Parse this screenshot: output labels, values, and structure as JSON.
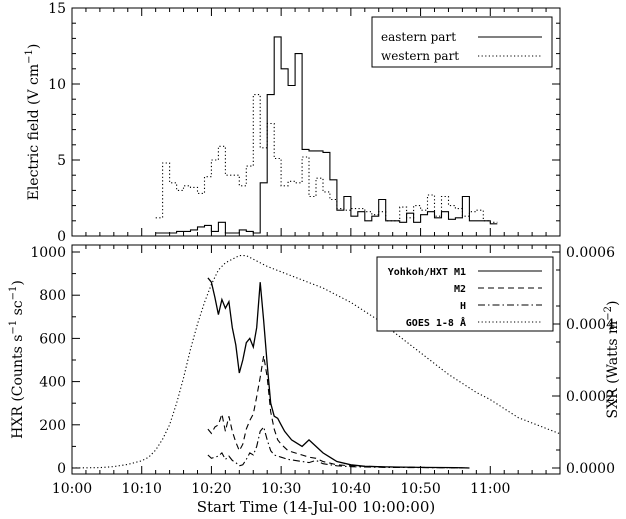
{
  "chart_data": [
    {
      "type": "line",
      "ylabel": "Electric field (V cm",
      "ylabel_sup": "−1",
      "ylabel_close": ")",
      "xlim": [
        0,
        70
      ],
      "ylim": [
        0,
        15
      ],
      "yticks": [
        "0",
        "5",
        "10",
        "15"
      ],
      "grid": false,
      "legend_position": "top-right",
      "series": [
        {
          "name": "eastern part",
          "style": "solid",
          "x": [
            12.5,
            13.5,
            14.5,
            15.5,
            16.5,
            17.5,
            18.5,
            19.5,
            20.5,
            21.5,
            22.5,
            23.5,
            24.5,
            25.5,
            26.5,
            27.5,
            28.5,
            29.5,
            30.5,
            31.5,
            32.5,
            33.5,
            34.5,
            35.5,
            36.5,
            37.5,
            38.5,
            39.5,
            40.5,
            41.5,
            42.5,
            43.5,
            44.5,
            45.5,
            46.5,
            47.5,
            48.5,
            49.5,
            50.5,
            51.5,
            52.5,
            53.5,
            54.5,
            55.5,
            56.5,
            57.5,
            58.5,
            59.5,
            60.5
          ],
          "y": [
            0.2,
            0.2,
            0.2,
            0.3,
            0.3,
            0.4,
            0.6,
            0.7,
            0.3,
            0.9,
            0.2,
            0.2,
            0.4,
            0.3,
            0.2,
            3.5,
            9.3,
            13.1,
            11.0,
            9.9,
            12.0,
            5.7,
            5.6,
            5.6,
            5.5,
            3.7,
            1.7,
            2.6,
            1.3,
            1.6,
            1.0,
            1.3,
            2.4,
            1.0,
            1.0,
            0.9,
            1.5,
            0.9,
            1.4,
            1.6,
            1.2,
            1.6,
            1.1,
            1.2,
            2.6,
            1.0,
            1.0,
            1.0,
            0.8
          ]
        },
        {
          "name": "western part",
          "style": "dotted",
          "x": [
            12.5,
            13.5,
            14.5,
            15.5,
            16.5,
            17.5,
            18.5,
            19.5,
            20.5,
            21.5,
            22.5,
            23.5,
            24.5,
            25.5,
            26.5,
            27.5,
            28.5,
            29.5,
            30.5,
            31.5,
            32.5,
            33.5,
            34.5,
            35.5,
            36.5,
            37.5,
            38.5,
            39.5,
            40.5,
            41.5,
            42.5,
            43.5,
            44.5,
            45.5,
            46.5,
            47.5,
            48.5,
            49.5,
            50.5,
            51.5,
            52.5,
            53.5,
            54.5,
            55.5,
            56.5,
            57.5,
            58.5,
            59.5,
            60.5
          ],
          "y": [
            1.2,
            4.8,
            3.5,
            3.0,
            3.3,
            3.2,
            2.8,
            3.9,
            5.0,
            5.9,
            4.0,
            4.0,
            3.3,
            4.6,
            9.3,
            5.8,
            7.4,
            5.1,
            3.3,
            3.6,
            3.5,
            5.2,
            2.6,
            3.8,
            2.9,
            2.4,
            1.8,
            1.7,
            1.8,
            1.8,
            1.6,
            1.4,
            1.6,
            1.0,
            1.0,
            1.9,
            1.2,
            2.0,
            1.7,
            2.7,
            1.3,
            2.6,
            2.0,
            1.8,
            1.3,
            1.6,
            1.7,
            1.0,
            0.9
          ]
        }
      ]
    },
    {
      "type": "line",
      "xlabel": "Start Time (14-Jul-00 10:00:00)",
      "xticks": [
        "10:00",
        "10:10",
        "10:20",
        "10:30",
        "10:40",
        "10:50",
        "11:00"
      ],
      "xlim": [
        0,
        70
      ],
      "ylabel_left": "HXR (Counts s",
      "ylabel_left_sup1": "−1",
      "ylabel_left_mid": " sc",
      "ylabel_left_sup2": "−1",
      "ylabel_left_close": ")",
      "ylim_left": [
        0,
        1000
      ],
      "yticks_left": [
        "0",
        "200",
        "400",
        "600",
        "800",
        "1000"
      ],
      "ylabel_right": "SXR (Watts m",
      "ylabel_right_sup": "−2",
      "ylabel_right_close": ")",
      "ylim_right": [
        0,
        0.0006
      ],
      "yticks_right": [
        "0.0000",
        "0.0002",
        "0.0004",
        "0.0006"
      ],
      "grid": false,
      "legend_position": "top-right",
      "series": [
        {
          "name": "Yohkoh/HXT M1",
          "style": "solid",
          "axis": "left",
          "x": [
            19.5,
            20,
            20.5,
            21,
            21.5,
            22,
            22.5,
            23,
            23.5,
            24,
            24.5,
            25,
            25.5,
            26,
            26.5,
            27,
            27.5,
            28,
            28.5,
            29,
            29.5,
            30,
            30.5,
            31,
            31.5,
            32,
            33,
            34,
            35,
            36,
            37,
            38,
            40,
            42,
            45,
            50,
            55,
            57
          ],
          "y": [
            880,
            860,
            790,
            710,
            780,
            740,
            770,
            650,
            570,
            440,
            500,
            580,
            600,
            560,
            650,
            860,
            680,
            480,
            300,
            240,
            230,
            200,
            170,
            150,
            130,
            120,
            100,
            130,
            100,
            70,
            50,
            30,
            15,
            8,
            5,
            3,
            2,
            0
          ]
        },
        {
          "name": "M2",
          "style": "dashed",
          "axis": "left",
          "x": [
            19.5,
            20,
            20.5,
            21,
            21.5,
            22,
            22.5,
            23,
            23.5,
            24,
            24.5,
            25,
            25.5,
            26,
            26.5,
            27,
            27.5,
            28,
            28.5,
            29,
            29.5,
            30,
            31,
            32,
            33,
            34,
            35,
            36,
            38,
            40,
            45,
            50,
            55,
            57
          ],
          "y": [
            180,
            160,
            190,
            200,
            250,
            170,
            240,
            170,
            120,
            80,
            110,
            180,
            220,
            250,
            330,
            420,
            520,
            420,
            260,
            180,
            130,
            110,
            80,
            70,
            60,
            50,
            45,
            30,
            15,
            10,
            5,
            3,
            1,
            0
          ]
        },
        {
          "name": "H",
          "style": "dash-dot",
          "axis": "left",
          "x": [
            19.5,
            20,
            20.5,
            21,
            21.5,
            22,
            22.5,
            23,
            23.5,
            24,
            24.5,
            25,
            25.5,
            26,
            26.5,
            27,
            27.5,
            28,
            28.5,
            29,
            30,
            31,
            32,
            33,
            34,
            35,
            36,
            38,
            40,
            45,
            50,
            55,
            57
          ],
          "y": [
            60,
            45,
            50,
            55,
            70,
            40,
            55,
            35,
            25,
            10,
            15,
            40,
            70,
            60,
            100,
            170,
            190,
            130,
            80,
            60,
            50,
            40,
            35,
            30,
            25,
            35,
            20,
            10,
            6,
            3,
            2,
            1,
            0
          ]
        },
        {
          "name": "GOES 1-8 Å",
          "style": "dotted",
          "axis": "right",
          "x": [
            0,
            4,
            6,
            8,
            10,
            11,
            12,
            13,
            14,
            15,
            16,
            17,
            18,
            19,
            20,
            21,
            22,
            23,
            24,
            25,
            26,
            27,
            28,
            30,
            32,
            34,
            36,
            38,
            40,
            42,
            44,
            46,
            48,
            50,
            52,
            54,
            56,
            58,
            60,
            62,
            64,
            66,
            68,
            70
          ],
          "y": [
            0,
            1e-06,
            4e-06,
            1e-05,
            2e-05,
            3e-05,
            5e-05,
            8e-05,
            0.00012,
            0.00018,
            0.00025,
            0.00033,
            0.0004,
            0.00046,
            0.00051,
            0.00055,
            0.00057,
            0.00058,
            0.00059,
            0.00059,
            0.00058,
            0.00057,
            0.00056,
            0.000545,
            0.00053,
            0.000515,
            0.0005,
            0.00048,
            0.00046,
            0.000435,
            0.00041,
            0.00038,
            0.00035,
            0.00032,
            0.00029,
            0.00026,
            0.000235,
            0.00021,
            0.00019,
            0.000165,
            0.00014,
            0.000125,
            0.00011,
            9.5e-05
          ]
        }
      ]
    }
  ]
}
